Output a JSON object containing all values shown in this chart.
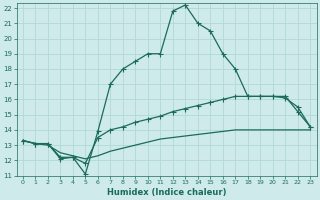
{
  "xlabel": "Humidex (Indice chaleur)",
  "xlim": [
    -0.5,
    23.5
  ],
  "ylim": [
    11,
    22.3
  ],
  "xticks": [
    0,
    1,
    2,
    3,
    4,
    5,
    6,
    7,
    8,
    9,
    10,
    11,
    12,
    13,
    14,
    15,
    16,
    17,
    18,
    19,
    20,
    21,
    22,
    23
  ],
  "yticks": [
    11,
    12,
    13,
    14,
    15,
    16,
    17,
    18,
    19,
    20,
    21,
    22
  ],
  "background_color": "#ceeaea",
  "grid_color": "#b0d8d8",
  "line_color": "#1a6b5a",
  "line1_y": [
    13.3,
    13.1,
    13.1,
    12.1,
    12.2,
    11.1,
    13.9,
    17.0,
    18.0,
    18.5,
    19.0,
    19.0,
    21.8,
    22.2,
    21.0,
    20.5,
    19.0,
    18.0,
    16.2,
    16.2,
    16.2,
    16.2,
    15.2,
    14.2
  ],
  "line2_y": [
    13.3,
    13.1,
    13.1,
    12.2,
    12.2,
    11.8,
    13.5,
    14.0,
    14.2,
    14.5,
    14.7,
    14.9,
    15.2,
    15.4,
    15.6,
    15.8,
    16.0,
    16.2,
    16.2,
    16.2,
    16.2,
    16.1,
    15.5,
    14.2
  ],
  "line3_y": [
    13.3,
    13.1,
    13.0,
    12.5,
    12.3,
    12.1,
    12.3,
    12.6,
    12.8,
    13.0,
    13.2,
    13.4,
    13.5,
    13.6,
    13.7,
    13.8,
    13.9,
    14.0,
    14.0,
    14.0,
    14.0,
    14.0,
    14.0,
    14.0
  ]
}
